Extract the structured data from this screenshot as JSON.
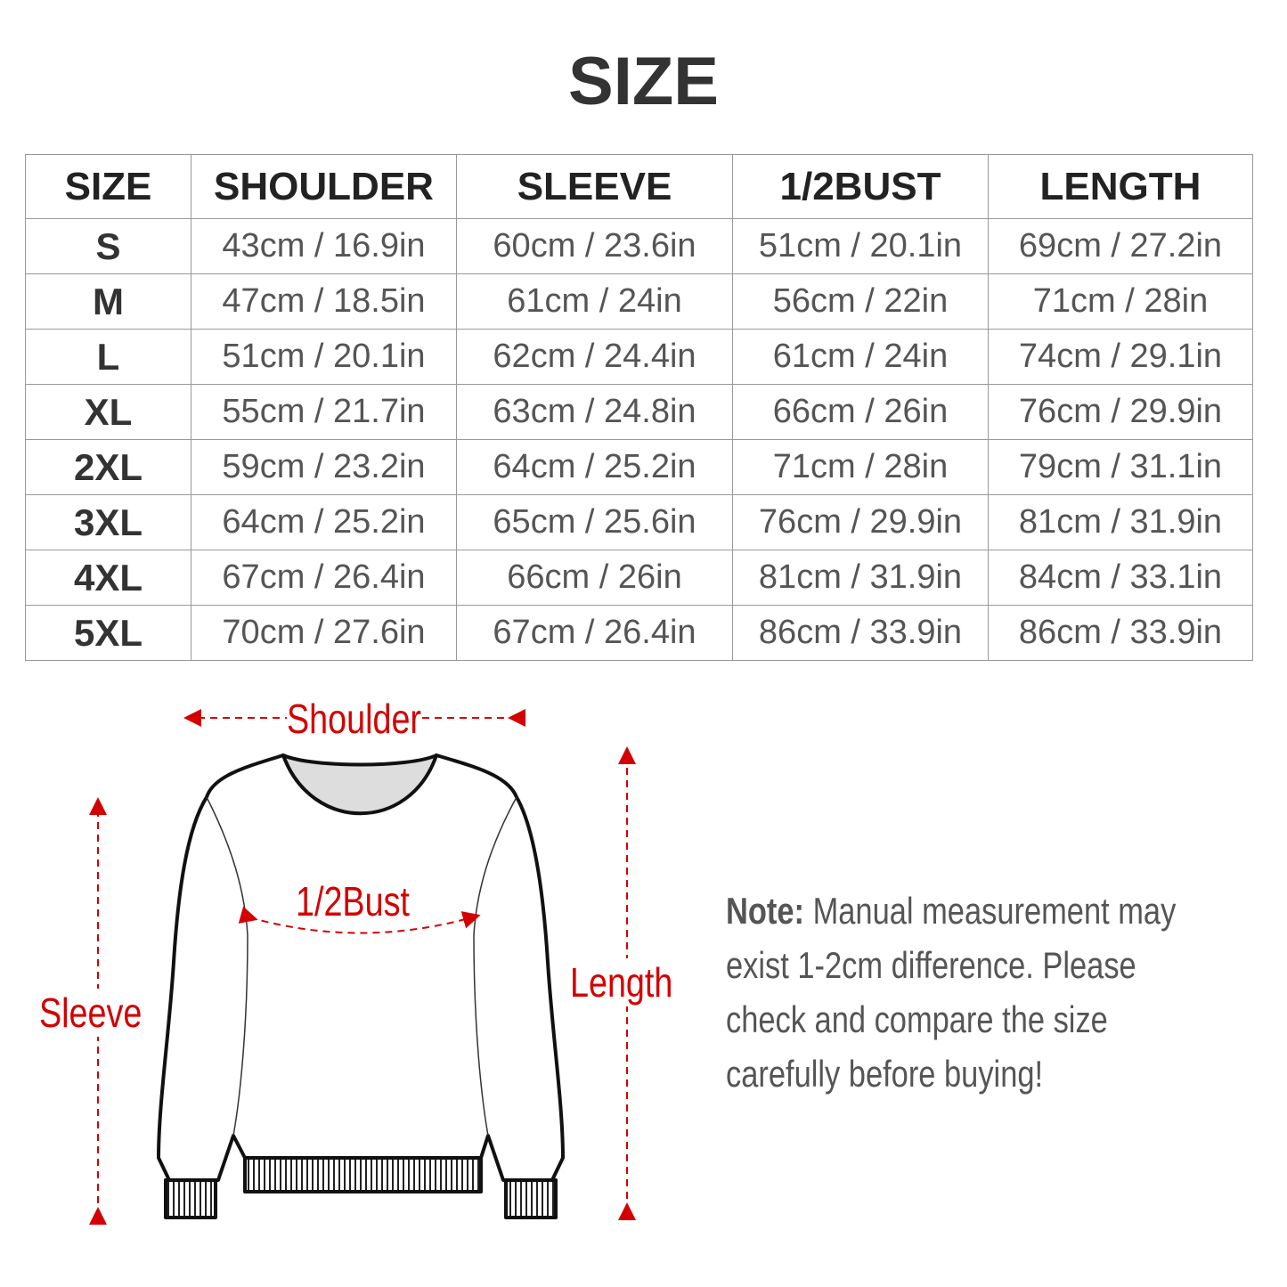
{
  "title": "SIZE",
  "table": {
    "headers": [
      "SIZE",
      "SHOULDER",
      "SLEEVE",
      "1/2BUST",
      "LENGTH"
    ],
    "rows": [
      [
        "S",
        "43cm / 16.9in",
        "60cm / 23.6in",
        "51cm / 20.1in",
        "69cm / 27.2in"
      ],
      [
        "M",
        "47cm / 18.5in",
        "61cm / 24in",
        "56cm / 22in",
        "71cm / 28in"
      ],
      [
        "L",
        "51cm / 20.1in",
        "62cm / 24.4in",
        "61cm / 24in",
        "74cm / 29.1in"
      ],
      [
        "XL",
        "55cm / 21.7in",
        "63cm / 24.8in",
        "66cm / 26in",
        "76cm / 29.9in"
      ],
      [
        "2XL",
        "59cm / 23.2in",
        "64cm / 25.2in",
        "71cm / 28in",
        "79cm / 31.1in"
      ],
      [
        "3XL",
        "64cm / 25.2in",
        "65cm / 25.6in",
        "76cm / 29.9in",
        "81cm / 31.9in"
      ],
      [
        "4XL",
        "67cm / 26.4in",
        "66cm / 26in",
        "81cm / 31.9in",
        "84cm / 33.1in"
      ],
      [
        "5XL",
        "70cm / 27.6in",
        "67cm / 26.4in",
        "86cm / 33.9in",
        "86cm / 33.9in"
      ]
    ]
  },
  "diagram": {
    "shoulder": "Shoulder",
    "bust": "1/2Bust",
    "sleeve": "Sleeve",
    "length": "Length",
    "accent_color": "#d40000"
  },
  "note": {
    "label": "Note:",
    "text": " Manual measurement may exist 1-2cm difference. Please check and compare the size carefully before buying!"
  }
}
